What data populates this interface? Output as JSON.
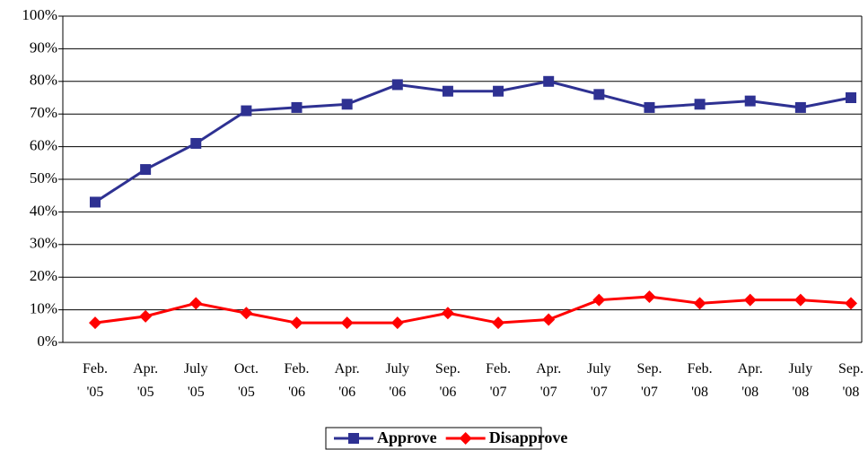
{
  "chart_data": {
    "type": "line",
    "categories": [
      "Feb. '05",
      "Apr. '05",
      "July '05",
      "Oct. '05",
      "Feb. '06",
      "Apr. '06",
      "July '06",
      "Sep. '06",
      "Feb. '07",
      "Apr. '07",
      "July '07",
      "Sep. '07",
      "Feb. '08",
      "Apr. '08",
      "July '08",
      "Sep. '08"
    ],
    "series": [
      {
        "name": "Approve",
        "color": "#2e3192",
        "marker": "square",
        "values": [
          43,
          53,
          61,
          71,
          72,
          73,
          79,
          77,
          77,
          80,
          76,
          72,
          73,
          74,
          72,
          75
        ]
      },
      {
        "name": "Disapprove",
        "color": "#ff0000",
        "marker": "diamond",
        "values": [
          6,
          8,
          12,
          9,
          6,
          6,
          6,
          9,
          6,
          7,
          13,
          14,
          12,
          13,
          13,
          12
        ]
      }
    ],
    "ylim": [
      0,
      100
    ],
    "yticks": [
      {
        "value": 0,
        "label": "0%"
      },
      {
        "value": 10,
        "label": "10%"
      },
      {
        "value": 20,
        "label": "20%"
      },
      {
        "value": 30,
        "label": "30%"
      },
      {
        "value": 40,
        "label": "40%"
      },
      {
        "value": 50,
        "label": "50%"
      },
      {
        "value": 60,
        "label": "60%"
      },
      {
        "value": 70,
        "label": "70%"
      },
      {
        "value": 80,
        "label": "80%"
      },
      {
        "value": 90,
        "label": "90%"
      },
      {
        "value": 100,
        "label": "100%"
      }
    ],
    "grid": true,
    "legend": "bottom"
  }
}
